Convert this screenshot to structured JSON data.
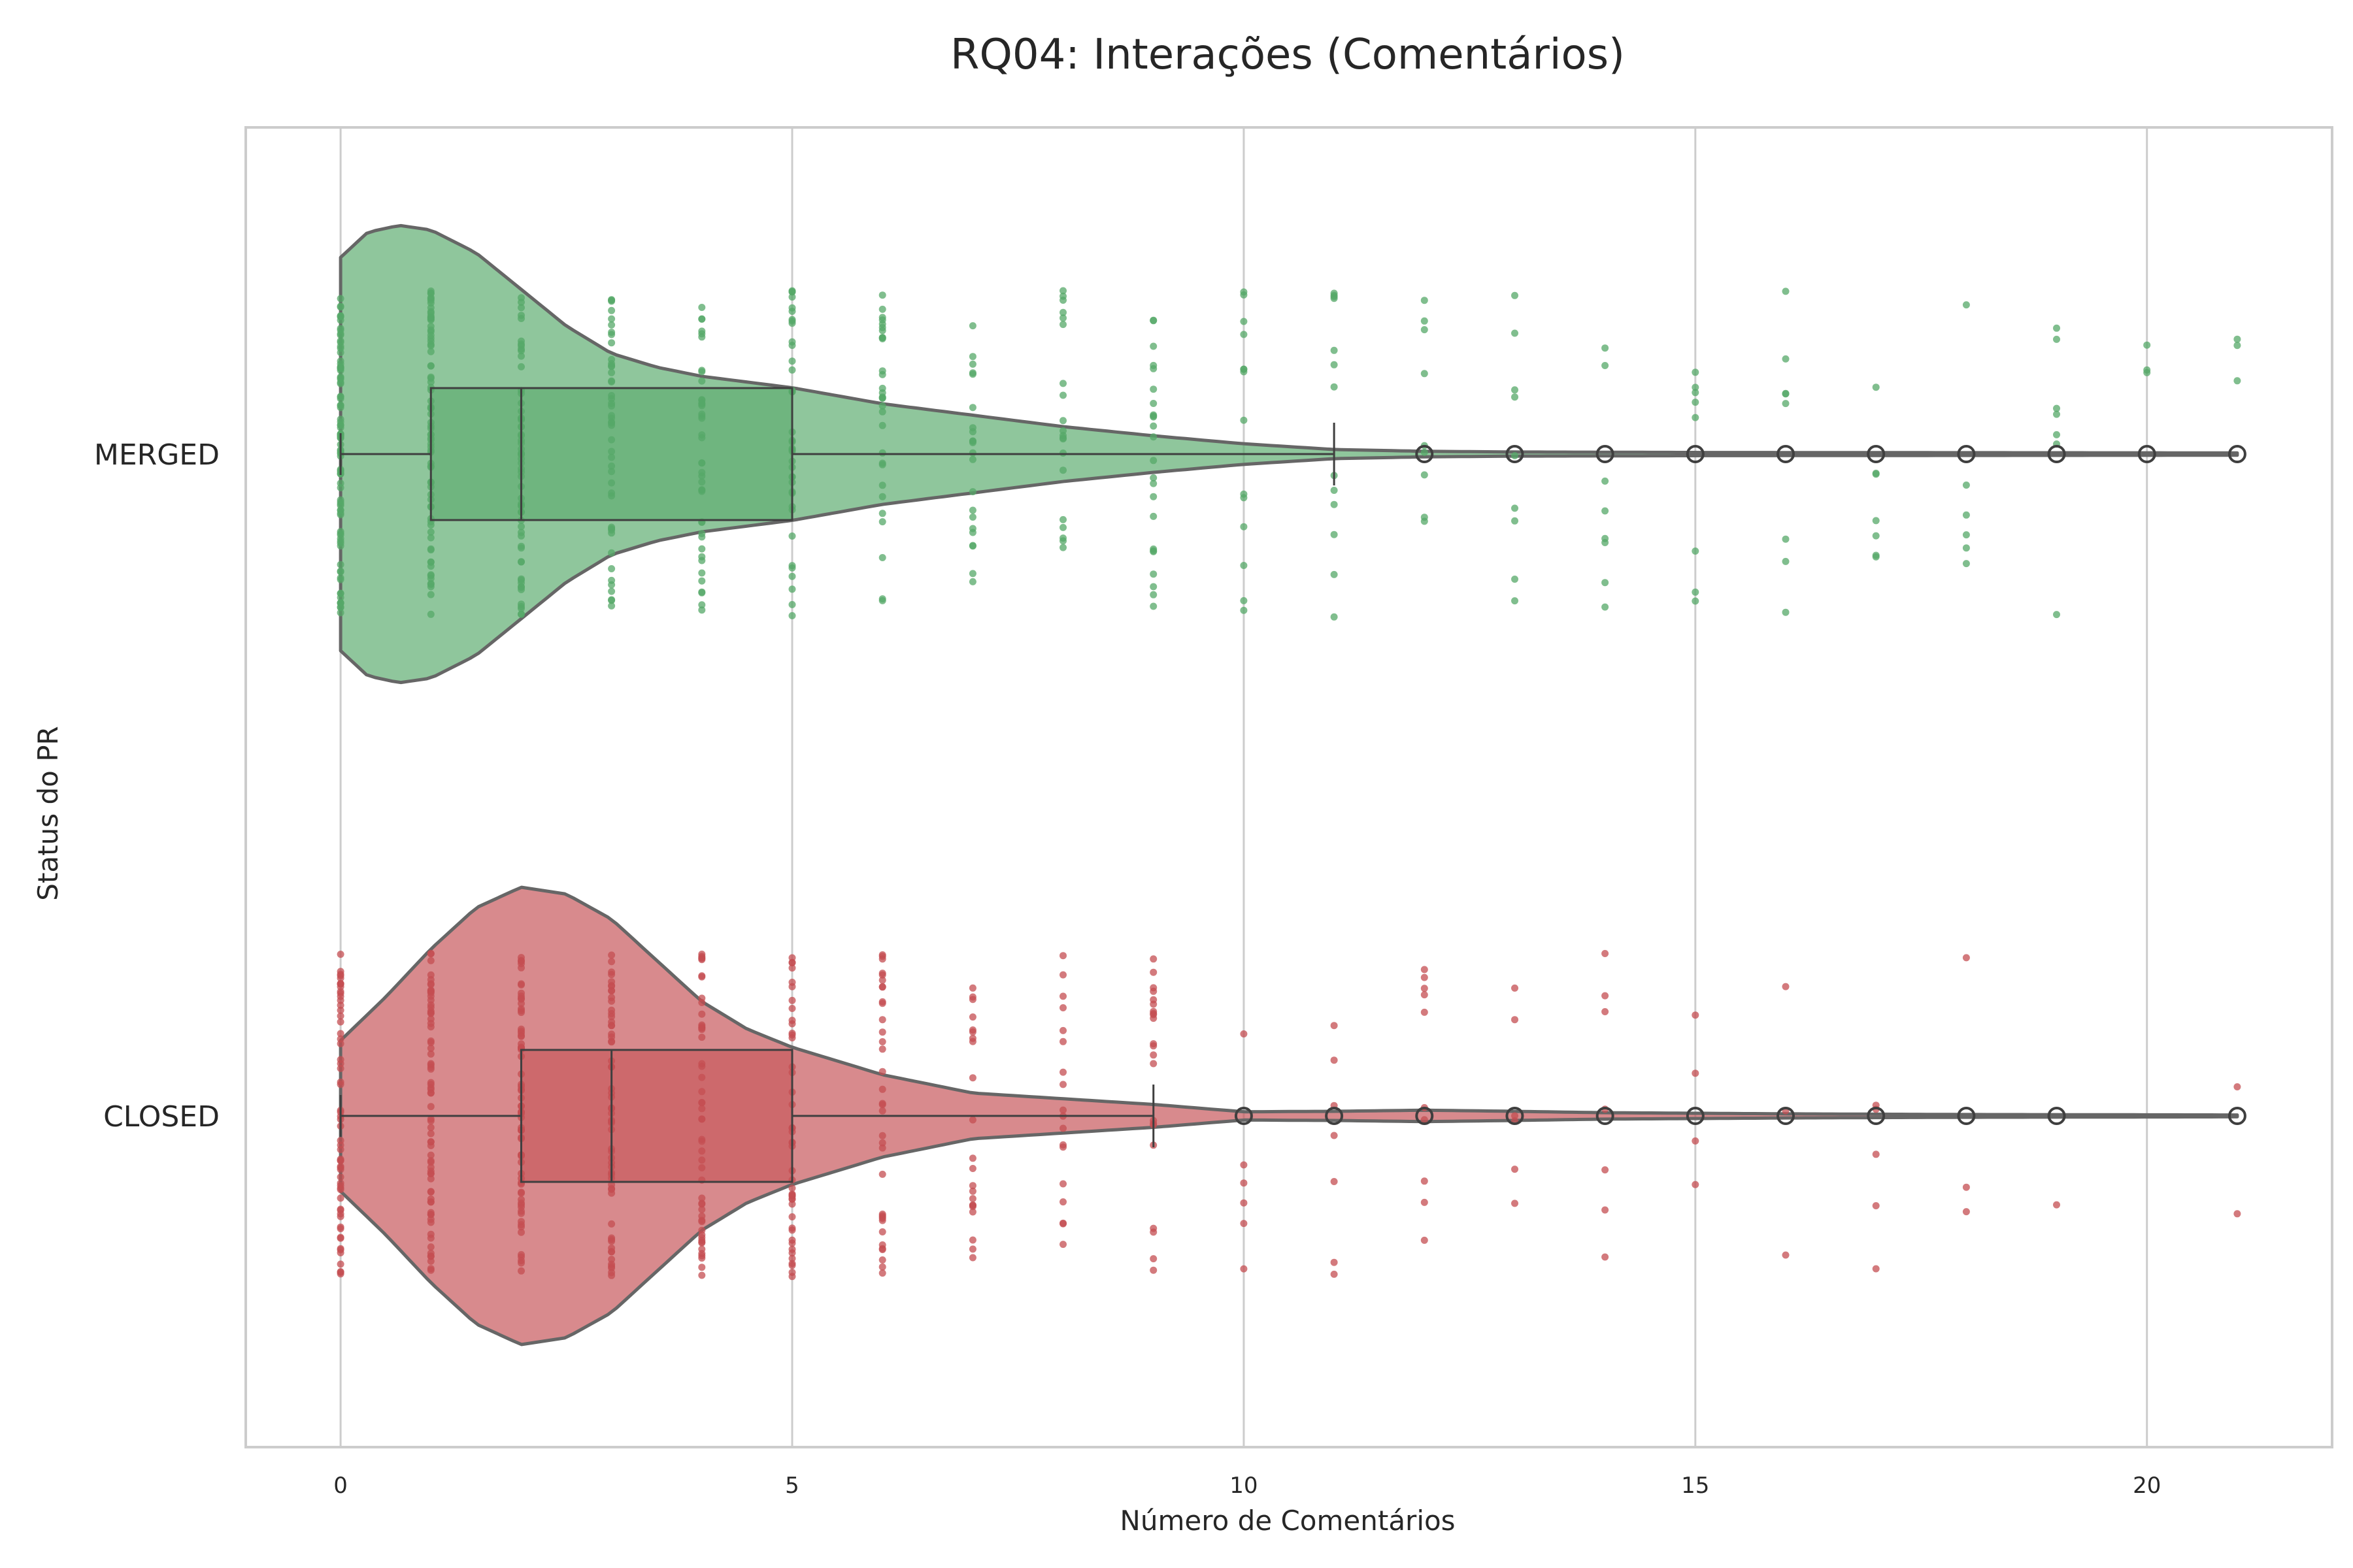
{
  "chart_data": {
    "type": "violin",
    "title": "RQ04: Interações (Comentários)",
    "xlabel": "Número de Comentários",
    "ylabel": "Status do PR",
    "xlim": [
      -1.05,
      22.05
    ],
    "xticks": [
      "0",
      "5",
      "10",
      "15",
      "20"
    ],
    "xtick_values": [
      0,
      5,
      10,
      15,
      20
    ],
    "grid": true,
    "style": "seaborn-whitegrid",
    "overlays": [
      "violin",
      "boxplot",
      "strip-points"
    ],
    "colors": {
      "merged": "#55a868",
      "closed": "#c44e52",
      "outline": "#666666",
      "box_line": "#3f3f3f",
      "grid": "#cccccc"
    },
    "series": [
      {
        "name": "MERGED",
        "color": "#55a868",
        "box": {
          "whisker_low": 0,
          "q1": 1,
          "median": 2,
          "q3": 5,
          "whisker_high": 11
        },
        "outliers": [
          12,
          13,
          14,
          15,
          16,
          17,
          18,
          19,
          20,
          21
        ],
        "density": [
          [
            0,
            0.86
          ],
          [
            0.3,
            0.97
          ],
          [
            0.65,
            1.0
          ],
          [
            1,
            0.98
          ],
          [
            1.5,
            0.88
          ],
          [
            2,
            0.72
          ],
          [
            2.5,
            0.56
          ],
          [
            3,
            0.44
          ],
          [
            3.5,
            0.38
          ],
          [
            4,
            0.34
          ],
          [
            5,
            0.29
          ],
          [
            6,
            0.22
          ],
          [
            7,
            0.17
          ],
          [
            8,
            0.12
          ],
          [
            9,
            0.08
          ],
          [
            10,
            0.045
          ],
          [
            11,
            0.02
          ],
          [
            12,
            0.012
          ],
          [
            13,
            0.009
          ],
          [
            15,
            0.007
          ],
          [
            18,
            0.006
          ],
          [
            21,
            0.005
          ]
        ],
        "strip_values": [
          0,
          1,
          2,
          3,
          4,
          5,
          6,
          7,
          8,
          9,
          10,
          11,
          12,
          13,
          14,
          15,
          16,
          17,
          18,
          19,
          20,
          21
        ],
        "strip_counts": [
          90,
          75,
          60,
          45,
          40,
          38,
          30,
          22,
          20,
          24,
          14,
          13,
          9,
          9,
          8,
          8,
          8,
          7,
          6,
          7,
          3,
          3
        ]
      },
      {
        "name": "CLOSED",
        "color": "#c44e52",
        "box": {
          "whisker_low": 0,
          "q1": 2,
          "median": 3,
          "q3": 5,
          "whisker_high": 9
        },
        "outliers": [
          10,
          11,
          12,
          13,
          14,
          15,
          16,
          17,
          18,
          19,
          21
        ],
        "density": [
          [
            0,
            0.33
          ],
          [
            0.5,
            0.52
          ],
          [
            1,
            0.73
          ],
          [
            1.5,
            0.91
          ],
          [
            2,
            1.0
          ],
          [
            2.5,
            0.97
          ],
          [
            3,
            0.86
          ],
          [
            3.5,
            0.68
          ],
          [
            4,
            0.5
          ],
          [
            4.5,
            0.38
          ],
          [
            5,
            0.3
          ],
          [
            6,
            0.18
          ],
          [
            7,
            0.1
          ],
          [
            8,
            0.075
          ],
          [
            9,
            0.05
          ],
          [
            10,
            0.018
          ],
          [
            11,
            0.02
          ],
          [
            12,
            0.025
          ],
          [
            13,
            0.02
          ],
          [
            14,
            0.014
          ],
          [
            16,
            0.009
          ],
          [
            18,
            0.006
          ],
          [
            21,
            0.004
          ]
        ],
        "strip_values": [
          0,
          1,
          2,
          3,
          4,
          5,
          6,
          7,
          8,
          9,
          10,
          11,
          12,
          13,
          14,
          15,
          16,
          17,
          18,
          19,
          21
        ],
        "strip_counts": [
          60,
          70,
          70,
          60,
          50,
          45,
          35,
          22,
          18,
          22,
          6,
          7,
          10,
          6,
          7,
          4,
          3,
          5,
          3,
          1,
          2
        ]
      }
    ]
  }
}
